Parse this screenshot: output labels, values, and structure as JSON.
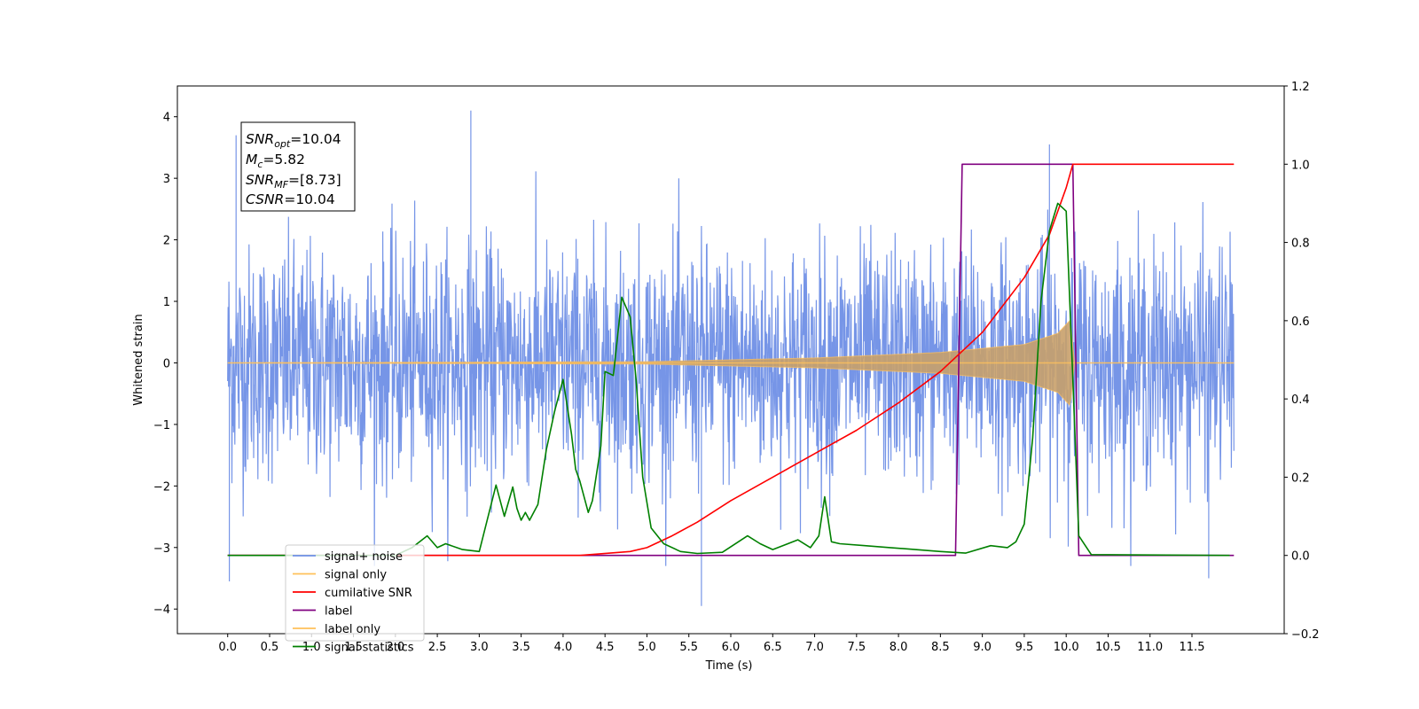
{
  "chart_data": {
    "type": "line",
    "xlabel": "Time (s)",
    "ylabel_left": "Whitened strain",
    "xlim": [
      -0.6,
      12.6
    ],
    "ylim_left": [
      -4.4,
      4.5
    ],
    "ylim_right": [
      -0.2,
      1.2
    ],
    "x_ticks": [
      "0.0",
      "0.5",
      "1.0",
      "1.5",
      "2.0",
      "2.5",
      "3.0",
      "3.5",
      "4.0",
      "4.5",
      "5.0",
      "5.5",
      "6.0",
      "6.5",
      "7.0",
      "7.5",
      "8.0",
      "8.5",
      "9.0",
      "9.5",
      "10.0",
      "10.5",
      "11.0",
      "11.5"
    ],
    "y_ticks_left": [
      "−4",
      "−3",
      "−2",
      "−1",
      "0",
      "1",
      "2",
      "3",
      "4"
    ],
    "y_ticks_right": [
      "−0.2",
      "0.0",
      "0.2",
      "0.4",
      "0.6",
      "0.8",
      "1.0",
      "1.2"
    ],
    "annotation": {
      "line1": {
        "base": "SNR",
        "sub": "opt",
        "value": "=10.04"
      },
      "line2": {
        "base": "M",
        "sub": "c",
        "value": "=5.82"
      },
      "line3": {
        "base": "SNR",
        "sub": "MF",
        "value": "=[8.73]"
      },
      "line4": {
        "base": "CSNR",
        "sub": "",
        "value": "=10.04"
      }
    },
    "legend": {
      "position": "lower left",
      "entries": [
        {
          "label": "signal+ noise",
          "color": "#6f8fe6"
        },
        {
          "label": "signal only",
          "color": "#ffc15a"
        },
        {
          "label": "cumilative SNR",
          "color": "#ff0000"
        },
        {
          "label": "label",
          "color": "#800080"
        },
        {
          "label": "label only",
          "color": "#ffc15a"
        },
        {
          "label": "signal statistics",
          "color": "#008000"
        }
      ]
    },
    "series": [
      {
        "name": "signal+ noise",
        "axis": "left",
        "color": "#6f8fe6",
        "description": "whitened noise ~N(0,1) spanning 0–12 s",
        "x_range": [
          0,
          12
        ],
        "notable_peaks": [
          [
            0.1,
            3.7
          ],
          [
            2.9,
            4.1
          ],
          [
            9.8,
            3.55
          ],
          [
            0.02,
            -3.55
          ],
          [
            5.65,
            -3.95
          ],
          [
            11.7,
            -3.5
          ]
        ]
      },
      {
        "name": "signal only",
        "axis": "left",
        "color": "#ffc15a",
        "envelope": {
          "x": [
            0,
            5,
            7,
            8.5,
            9.5,
            9.9,
            10.05,
            10.1,
            12
          ],
          "amp": [
            0.0,
            0.02,
            0.08,
            0.17,
            0.3,
            0.48,
            0.7,
            0.0,
            0.0
          ]
        }
      },
      {
        "name": "cumilative SNR",
        "axis": "right",
        "color": "#ff0000",
        "x": [
          0,
          4.2,
          4.8,
          5.0,
          5.3,
          5.6,
          6.0,
          6.5,
          7.0,
          7.5,
          8.0,
          8.5,
          9.0,
          9.5,
          9.8,
          10.0,
          10.08,
          12
        ],
        "y": [
          0,
          0,
          0.01,
          0.02,
          0.05,
          0.085,
          0.14,
          0.2,
          0.26,
          0.32,
          0.39,
          0.47,
          0.57,
          0.71,
          0.82,
          0.94,
          1.0,
          1.0
        ]
      },
      {
        "name": "label",
        "axis": "right",
        "color": "#800080",
        "x": [
          0,
          8.68,
          8.76,
          10.08,
          10.15,
          12
        ],
        "y": [
          0,
          0,
          1.0,
          1.0,
          0,
          0
        ]
      },
      {
        "name": "signal statistics",
        "axis": "right",
        "color": "#008000",
        "x": [
          0,
          2.0,
          2.2,
          2.38,
          2.5,
          2.6,
          2.8,
          3.0,
          3.2,
          3.3,
          3.4,
          3.45,
          3.5,
          3.55,
          3.6,
          3.7,
          3.8,
          3.9,
          4.0,
          4.1,
          4.15,
          4.2,
          4.3,
          4.35,
          4.45,
          4.5,
          4.6,
          4.7,
          4.8,
          4.87,
          4.95,
          5.05,
          5.2,
          5.4,
          5.6,
          5.9,
          6.2,
          6.35,
          6.5,
          6.8,
          6.95,
          7.05,
          7.12,
          7.2,
          7.3,
          7.6,
          7.9,
          8.2,
          8.5,
          8.8,
          9.1,
          9.3,
          9.4,
          9.5,
          9.6,
          9.7,
          9.8,
          9.9,
          10.0,
          10.08,
          10.15,
          10.3,
          11.95
        ],
        "y": [
          0,
          0,
          0.02,
          0.05,
          0.02,
          0.03,
          0.015,
          0.01,
          0.18,
          0.1,
          0.175,
          0.12,
          0.09,
          0.11,
          0.09,
          0.13,
          0.27,
          0.37,
          0.45,
          0.31,
          0.22,
          0.19,
          0.11,
          0.14,
          0.28,
          0.47,
          0.46,
          0.66,
          0.61,
          0.45,
          0.2,
          0.07,
          0.03,
          0.01,
          0.005,
          0.008,
          0.05,
          0.03,
          0.015,
          0.04,
          0.02,
          0.05,
          0.15,
          0.035,
          0.03,
          0.025,
          0.02,
          0.015,
          0.01,
          0.006,
          0.025,
          0.02,
          0.035,
          0.08,
          0.3,
          0.65,
          0.83,
          0.9,
          0.88,
          0.45,
          0.05,
          0.002,
          0.0
        ]
      }
    ]
  }
}
